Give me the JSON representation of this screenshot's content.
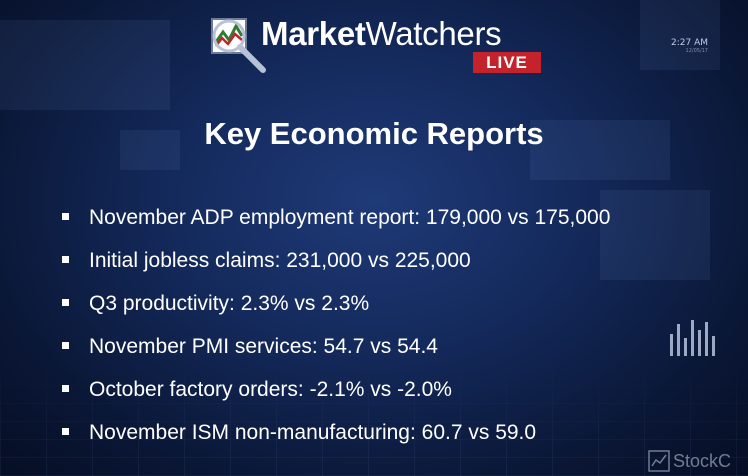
{
  "brand": {
    "name_bold": "Market",
    "name_light": "Watchers",
    "badge": "LIVE",
    "badge_color": "#c4232b"
  },
  "clock": {
    "time": "2:27 AM",
    "date": "12/05/17"
  },
  "title": "Key Economic Reports",
  "reports": [
    "November ADP employment report:  179,000 vs 175,000",
    "Initial jobless claims:  231,000 vs 225,000",
    "Q3 productivity:  2.3% vs 2.3%",
    "November PMI services:  54.7 vs 54.4",
    "October factory orders:  -2.1% vs -2.0%",
    "November ISM non-manufacturing:  60.7 vs 59.0"
  ],
  "watermark": "StockC",
  "icons": {
    "logo": "magnifier-chart-icon",
    "bullet": "square-bullet-icon",
    "watermark": "stockcharts-logo-icon"
  },
  "colors": {
    "background": "#142a5c",
    "text": "#ffffff"
  }
}
